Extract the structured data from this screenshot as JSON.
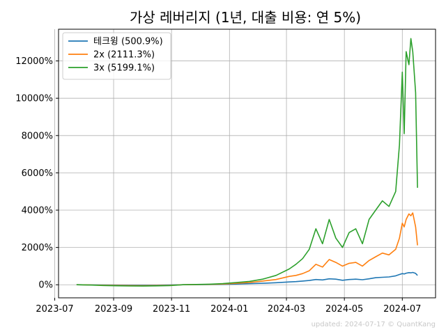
{
  "chart_data": {
    "type": "line",
    "title": "가상 레버리지 (1년, 대출 비용: 연 5%)",
    "xlabel": "",
    "ylabel": "",
    "x_ticks": [
      "2023-07",
      "2023-09",
      "2023-11",
      "2024-01",
      "2024-03",
      "2024-05",
      "2024-07"
    ],
    "y_ticks": [
      "0%",
      "2000%",
      "4000%",
      "6000%",
      "8000%",
      "10000%",
      "12000%"
    ],
    "y_tick_values": [
      0,
      2000,
      4000,
      6000,
      8000,
      10000,
      12000
    ],
    "ylim": [
      -700,
      13700
    ],
    "xlim": [
      "2023-07-05",
      "2024-08-05"
    ],
    "grid": true,
    "legend_position": "top-left",
    "x": [
      "2023-07-24",
      "2023-08-07",
      "2023-08-21",
      "2023-09-04",
      "2023-09-18",
      "2023-10-02",
      "2023-10-16",
      "2023-10-30",
      "2023-11-13",
      "2023-11-27",
      "2023-12-11",
      "2023-12-25",
      "2024-01-08",
      "2024-01-22",
      "2024-02-05",
      "2024-02-19",
      "2024-03-04",
      "2024-03-11",
      "2024-03-18",
      "2024-03-25",
      "2024-04-01",
      "2024-04-08",
      "2024-04-15",
      "2024-04-22",
      "2024-04-29",
      "2024-05-06",
      "2024-05-13",
      "2024-05-20",
      "2024-05-27",
      "2024-06-03",
      "2024-06-10",
      "2024-06-17",
      "2024-06-24",
      "2024-06-28",
      "2024-07-01",
      "2024-07-03",
      "2024-07-05",
      "2024-07-08",
      "2024-07-10",
      "2024-07-12",
      "2024-07-15",
      "2024-07-17"
    ],
    "series": [
      {
        "name": "테크윙 (500.9%)",
        "color": "#1f77b4",
        "values": [
          0,
          -5,
          -12,
          -18,
          -22,
          -25,
          -20,
          -15,
          0,
          5,
          10,
          20,
          40,
          60,
          80,
          110,
          150,
          170,
          200,
          230,
          280,
          260,
          320,
          300,
          240,
          280,
          300,
          270,
          320,
          380,
          400,
          420,
          480,
          550,
          600,
          580,
          620,
          650,
          640,
          660,
          610,
          501
        ]
      },
      {
        "name": "2x (2111.3%)",
        "color": "#ff7f0e",
        "values": [
          0,
          -10,
          -25,
          -35,
          -45,
          -50,
          -40,
          -30,
          0,
          10,
          20,
          40,
          80,
          120,
          200,
          280,
          450,
          500,
          600,
          750,
          1100,
          950,
          1350,
          1200,
          1000,
          1150,
          1200,
          1000,
          1300,
          1500,
          1700,
          1600,
          1900,
          2500,
          3300,
          3100,
          3500,
          3800,
          3700,
          3850,
          3100,
          2111
        ]
      },
      {
        "name": "3x (5199.1%)",
        "color": "#2ca02c",
        "values": [
          0,
          -15,
          -40,
          -55,
          -65,
          -70,
          -60,
          -45,
          0,
          15,
          30,
          60,
          120,
          180,
          300,
          500,
          850,
          1100,
          1400,
          1900,
          3000,
          2200,
          3500,
          2500,
          2000,
          2800,
          3000,
          2200,
          3500,
          4000,
          4500,
          4200,
          5000,
          7500,
          11400,
          8100,
          12500,
          11800,
          13200,
          12500,
          10300,
          5199
        ]
      }
    ]
  },
  "watermark": "updated: 2024-07-17 © QuantKang"
}
